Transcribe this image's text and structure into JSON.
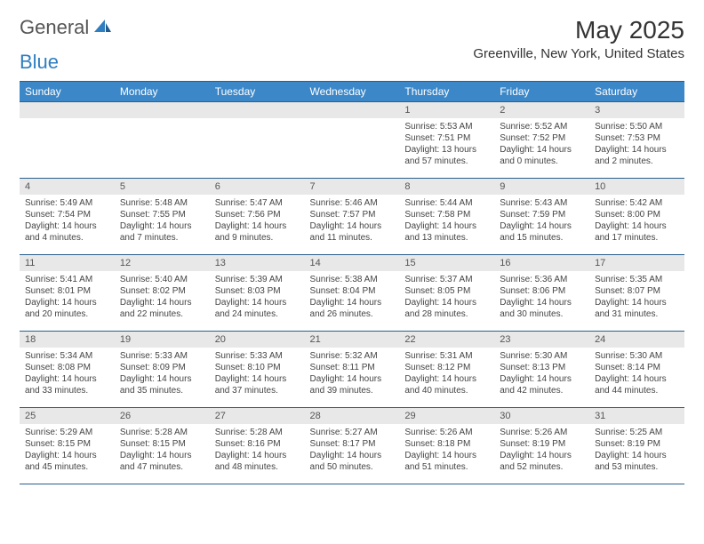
{
  "logo": {
    "part1": "General",
    "part2": "Blue"
  },
  "title": "May 2025",
  "location": "Greenville, New York, United States",
  "header_bg": "#3b87c8",
  "border_color": "#2a5f8c",
  "daynum_bg": "#e8e8e8",
  "weekdays": [
    "Sunday",
    "Monday",
    "Tuesday",
    "Wednesday",
    "Thursday",
    "Friday",
    "Saturday"
  ],
  "weeks": [
    [
      null,
      null,
      null,
      null,
      {
        "n": "1",
        "sr": "5:53 AM",
        "ss": "7:51 PM",
        "dl": "13 hours and 57 minutes."
      },
      {
        "n": "2",
        "sr": "5:52 AM",
        "ss": "7:52 PM",
        "dl": "14 hours and 0 minutes."
      },
      {
        "n": "3",
        "sr": "5:50 AM",
        "ss": "7:53 PM",
        "dl": "14 hours and 2 minutes."
      }
    ],
    [
      {
        "n": "4",
        "sr": "5:49 AM",
        "ss": "7:54 PM",
        "dl": "14 hours and 4 minutes."
      },
      {
        "n": "5",
        "sr": "5:48 AM",
        "ss": "7:55 PM",
        "dl": "14 hours and 7 minutes."
      },
      {
        "n": "6",
        "sr": "5:47 AM",
        "ss": "7:56 PM",
        "dl": "14 hours and 9 minutes."
      },
      {
        "n": "7",
        "sr": "5:46 AM",
        "ss": "7:57 PM",
        "dl": "14 hours and 11 minutes."
      },
      {
        "n": "8",
        "sr": "5:44 AM",
        "ss": "7:58 PM",
        "dl": "14 hours and 13 minutes."
      },
      {
        "n": "9",
        "sr": "5:43 AM",
        "ss": "7:59 PM",
        "dl": "14 hours and 15 minutes."
      },
      {
        "n": "10",
        "sr": "5:42 AM",
        "ss": "8:00 PM",
        "dl": "14 hours and 17 minutes."
      }
    ],
    [
      {
        "n": "11",
        "sr": "5:41 AM",
        "ss": "8:01 PM",
        "dl": "14 hours and 20 minutes."
      },
      {
        "n": "12",
        "sr": "5:40 AM",
        "ss": "8:02 PM",
        "dl": "14 hours and 22 minutes."
      },
      {
        "n": "13",
        "sr": "5:39 AM",
        "ss": "8:03 PM",
        "dl": "14 hours and 24 minutes."
      },
      {
        "n": "14",
        "sr": "5:38 AM",
        "ss": "8:04 PM",
        "dl": "14 hours and 26 minutes."
      },
      {
        "n": "15",
        "sr": "5:37 AM",
        "ss": "8:05 PM",
        "dl": "14 hours and 28 minutes."
      },
      {
        "n": "16",
        "sr": "5:36 AM",
        "ss": "8:06 PM",
        "dl": "14 hours and 30 minutes."
      },
      {
        "n": "17",
        "sr": "5:35 AM",
        "ss": "8:07 PM",
        "dl": "14 hours and 31 minutes."
      }
    ],
    [
      {
        "n": "18",
        "sr": "5:34 AM",
        "ss": "8:08 PM",
        "dl": "14 hours and 33 minutes."
      },
      {
        "n": "19",
        "sr": "5:33 AM",
        "ss": "8:09 PM",
        "dl": "14 hours and 35 minutes."
      },
      {
        "n": "20",
        "sr": "5:33 AM",
        "ss": "8:10 PM",
        "dl": "14 hours and 37 minutes."
      },
      {
        "n": "21",
        "sr": "5:32 AM",
        "ss": "8:11 PM",
        "dl": "14 hours and 39 minutes."
      },
      {
        "n": "22",
        "sr": "5:31 AM",
        "ss": "8:12 PM",
        "dl": "14 hours and 40 minutes."
      },
      {
        "n": "23",
        "sr": "5:30 AM",
        "ss": "8:13 PM",
        "dl": "14 hours and 42 minutes."
      },
      {
        "n": "24",
        "sr": "5:30 AM",
        "ss": "8:14 PM",
        "dl": "14 hours and 44 minutes."
      }
    ],
    [
      {
        "n": "25",
        "sr": "5:29 AM",
        "ss": "8:15 PM",
        "dl": "14 hours and 45 minutes."
      },
      {
        "n": "26",
        "sr": "5:28 AM",
        "ss": "8:15 PM",
        "dl": "14 hours and 47 minutes."
      },
      {
        "n": "27",
        "sr": "5:28 AM",
        "ss": "8:16 PM",
        "dl": "14 hours and 48 minutes."
      },
      {
        "n": "28",
        "sr": "5:27 AM",
        "ss": "8:17 PM",
        "dl": "14 hours and 50 minutes."
      },
      {
        "n": "29",
        "sr": "5:26 AM",
        "ss": "8:18 PM",
        "dl": "14 hours and 51 minutes."
      },
      {
        "n": "30",
        "sr": "5:26 AM",
        "ss": "8:19 PM",
        "dl": "14 hours and 52 minutes."
      },
      {
        "n": "31",
        "sr": "5:25 AM",
        "ss": "8:19 PM",
        "dl": "14 hours and 53 minutes."
      }
    ]
  ],
  "labels": {
    "sunrise": "Sunrise: ",
    "sunset": "Sunset: ",
    "daylight": "Daylight: "
  }
}
